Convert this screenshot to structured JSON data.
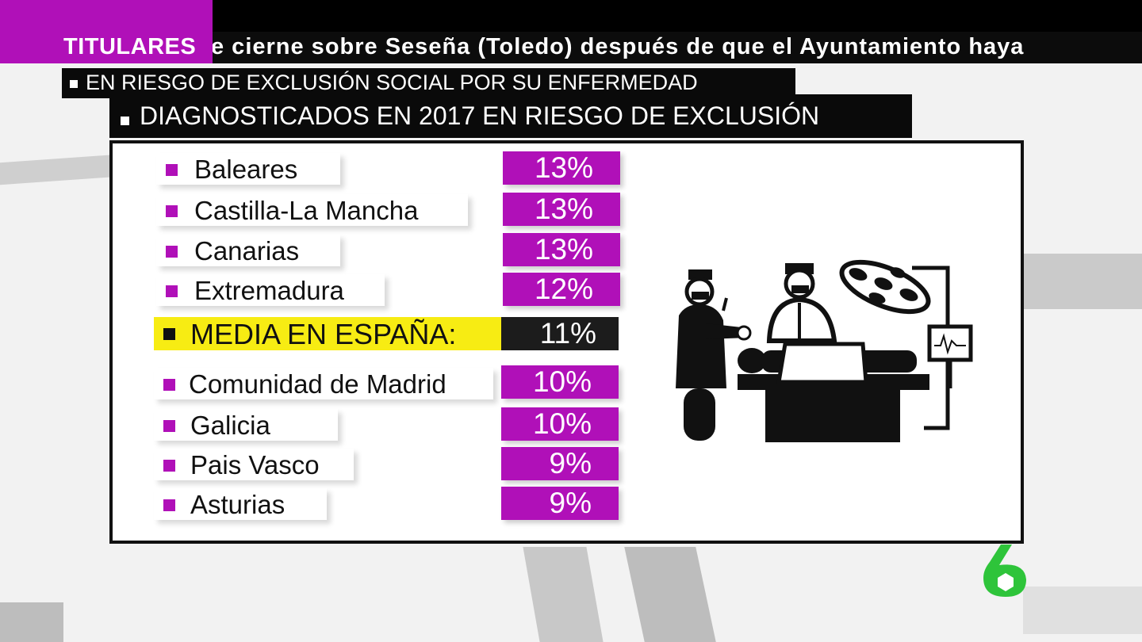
{
  "ticker": {
    "label": "TITULARES",
    "text": "e cierne sobre Seseña (Toledo) después de que el Ayuntamiento haya"
  },
  "subtitles": [
    "EN RIESGO DE EXCLUSIÓN SOCIAL POR SU ENFERMEDAD",
    "DIAGNOSTICADOS EN 2017 EN RIESGO DE EXCLUSIÓN"
  ],
  "chart_data": {
    "type": "table",
    "title": "DIAGNOSTICADOS EN 2017 EN RIESGO DE EXCLUSIÓN",
    "unit": "%",
    "rows": [
      {
        "label": "Baleares",
        "value": 13,
        "display": "13%"
      },
      {
        "label": "Castilla-La Mancha",
        "value": 13,
        "display": "13%"
      },
      {
        "label": "Canarias",
        "value": 13,
        "display": "13%"
      },
      {
        "label": "Extremadura",
        "value": 12,
        "display": "12%"
      },
      {
        "label": "MEDIA EN ESPAÑA:",
        "value": 11,
        "display": "11%",
        "highlight": true
      },
      {
        "label": "Comunidad de Madrid",
        "value": 10,
        "display": "10%"
      },
      {
        "label": "Galicia",
        "value": 10,
        "display": "10%"
      },
      {
        "label": "Pais Vasco",
        "value": 9,
        "display": "9%"
      },
      {
        "label": "Asturias",
        "value": 9,
        "display": "9%"
      }
    ]
  },
  "colors": {
    "accent": "#b010b8",
    "highlight": "#f7ec13",
    "logo": "#2ec43a"
  },
  "icons": {
    "illustration": "surgery-icon",
    "logo": "six-logo-icon"
  }
}
